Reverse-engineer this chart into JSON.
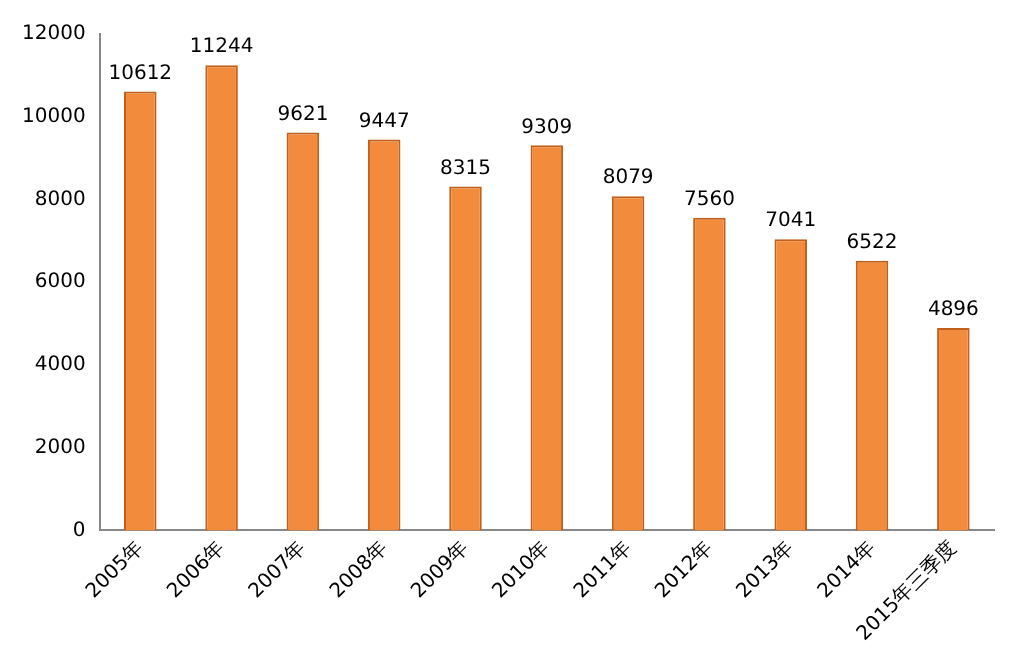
{
  "chart_data": {
    "type": "bar",
    "categories": [
      "2005年",
      "2006年",
      "2007年",
      "2008年",
      "2009年",
      "2010年",
      "2011年",
      "2012年",
      "2013年",
      "2014年",
      "2015年三季度"
    ],
    "values": [
      10612,
      11244,
      9621,
      9447,
      8315,
      9309,
      8079,
      7560,
      7041,
      6522,
      4896
    ],
    "color": "#f28c3c",
    "ylim": [
      0,
      12000
    ],
    "yticks": [
      0,
      2000,
      4000,
      6000,
      8000,
      10000,
      12000
    ],
    "grid": false,
    "legend": false,
    "data_labels": true
  }
}
